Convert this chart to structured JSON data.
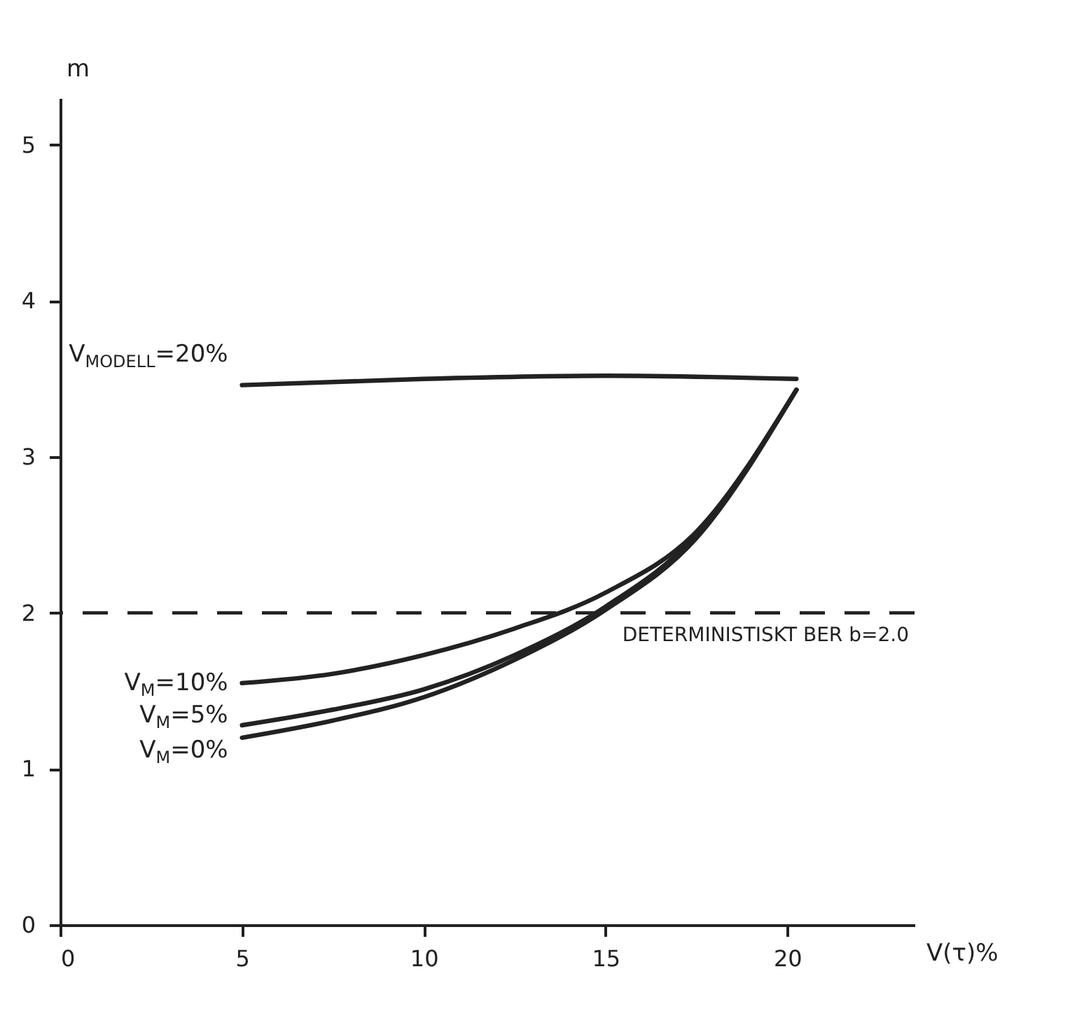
{
  "chart_data": {
    "type": "line",
    "xlabel": "V(τ)%",
    "ylabel": "m",
    "xlim": [
      0,
      23.5
    ],
    "ylim": [
      0,
      5.3
    ],
    "xticks": [
      0,
      5,
      10,
      15,
      20
    ],
    "yticks": [
      0,
      1,
      2,
      3,
      4,
      5
    ],
    "grid": false,
    "line_style": "solid",
    "marker": "none",
    "series": [
      {
        "name": "V$_{MODELL}$=20%",
        "color": "#222222",
        "x": [
          5,
          10,
          15,
          20.25
        ],
        "values": [
          3.46,
          3.5,
          3.52,
          3.5
        ]
      },
      {
        "name": "V$_{M}$=10%",
        "color": "#222222",
        "x": [
          5,
          7.5,
          10,
          12.5,
          15,
          17.5,
          20.25
        ],
        "values": [
          1.55,
          1.61,
          1.73,
          1.9,
          2.13,
          2.52,
          3.43
        ]
      },
      {
        "name": "V$_{M}$=5%",
        "color": "#222222",
        "x": [
          5,
          7.5,
          10,
          12.5,
          15,
          17.5,
          20.25
        ],
        "values": [
          1.28,
          1.38,
          1.51,
          1.73,
          2.04,
          2.5,
          3.43
        ]
      },
      {
        "name": "V$_{M}$=0%",
        "color": "#222222",
        "x": [
          5,
          7.5,
          10,
          12.5,
          15,
          17.5,
          20.25
        ],
        "values": [
          1.2,
          1.31,
          1.46,
          1.7,
          2.02,
          2.48,
          3.43
        ]
      }
    ],
    "ref_lines": [
      {
        "axis": "y",
        "value": 2,
        "label": "DETERMINISTISKT BER b=2.0",
        "line_style": "dashed",
        "color": "#222222"
      }
    ]
  }
}
